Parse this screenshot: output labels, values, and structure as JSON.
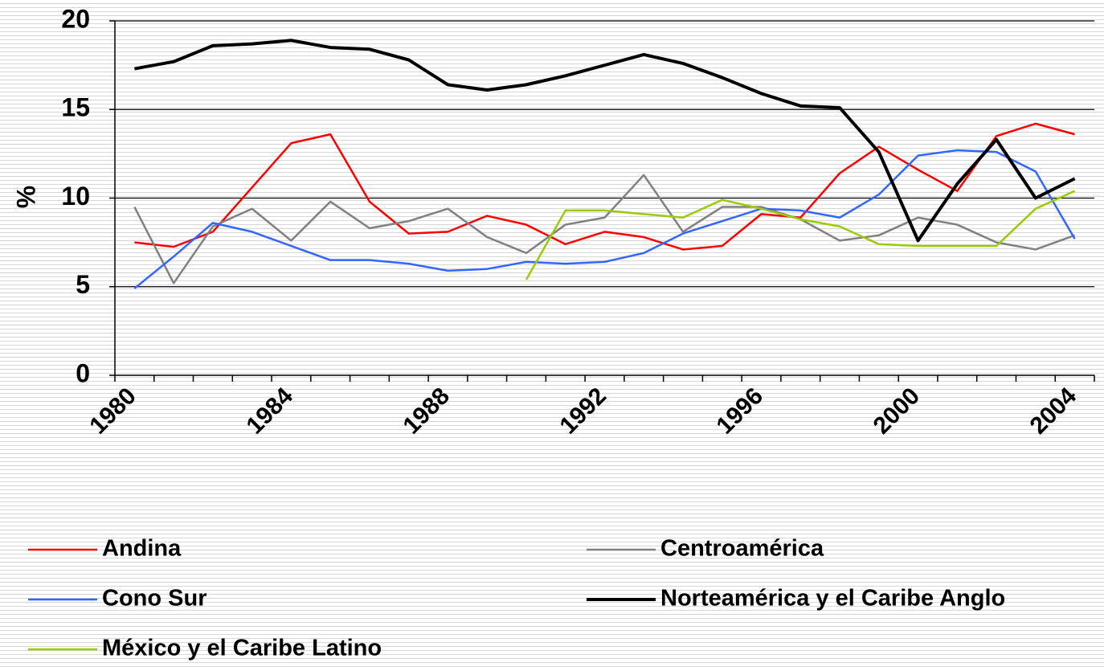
{
  "chart_data": {
    "type": "line",
    "y_label": "%",
    "categories": [
      "1980",
      null,
      null,
      null,
      "1984",
      null,
      null,
      null,
      "1988",
      null,
      null,
      null,
      "1992",
      null,
      null,
      null,
      "1996",
      null,
      null,
      null,
      "2000",
      null,
      null,
      null,
      "2004"
    ],
    "ylim": [
      0,
      20
    ],
    "yticks": [
      0,
      5,
      10,
      15,
      20
    ],
    "grid": true,
    "legend": "bottom",
    "series": [
      {
        "name": "Andina",
        "color": "#ff0000",
        "line_width": 2.5,
        "values": [
          7.5,
          7.25,
          8.1,
          10.6,
          13.1,
          13.6,
          9.8,
          8.0,
          8.1,
          9.0,
          8.5,
          7.4,
          8.1,
          7.8,
          7.1,
          7.3,
          9.1,
          8.9,
          11.4,
          12.9,
          11.6,
          10.4,
          13.5,
          14.2,
          13.6
        ]
      },
      {
        "name": "Centroamérica",
        "color": "#808080",
        "line_width": 2.5,
        "values": [
          9.5,
          5.2,
          8.4,
          9.4,
          7.6,
          9.8,
          8.3,
          8.7,
          9.4,
          7.8,
          6.9,
          8.5,
          8.9,
          11.3,
          8.1,
          9.5,
          9.5,
          8.8,
          7.6,
          7.9,
          8.9,
          8.5,
          7.5,
          7.1,
          7.9
        ]
      },
      {
        "name": "Cono Sur",
        "color": "#3366ff",
        "line_width": 2.5,
        "values": [
          4.9,
          6.7,
          8.6,
          8.1,
          7.3,
          6.5,
          6.5,
          6.3,
          5.9,
          6.0,
          6.4,
          6.3,
          6.4,
          6.9,
          8.0,
          8.7,
          9.4,
          9.3,
          8.9,
          10.2,
          12.4,
          12.7,
          12.6,
          11.5,
          7.7
        ]
      },
      {
        "name": "Norteamérica y el Caribe Anglo",
        "color": "#000000",
        "line_width": 4,
        "values": [
          17.3,
          17.7,
          18.6,
          18.7,
          18.9,
          18.5,
          18.4,
          17.8,
          16.4,
          16.1,
          16.4,
          16.9,
          17.5,
          18.1,
          17.6,
          16.8,
          15.9,
          15.2,
          15.1,
          12.6,
          7.6,
          10.8,
          13.3,
          10.0,
          11.1
        ]
      },
      {
        "name": "México y el Caribe Latino",
        "color": "#99cc00",
        "line_width": 2.5,
        "values": [
          null,
          null,
          null,
          null,
          null,
          null,
          null,
          null,
          null,
          null,
          5.4,
          9.3,
          9.3,
          9.1,
          8.9,
          9.9,
          9.4,
          8.8,
          8.4,
          7.4,
          7.3,
          7.3,
          7.3,
          9.4,
          10.4
        ]
      }
    ]
  }
}
